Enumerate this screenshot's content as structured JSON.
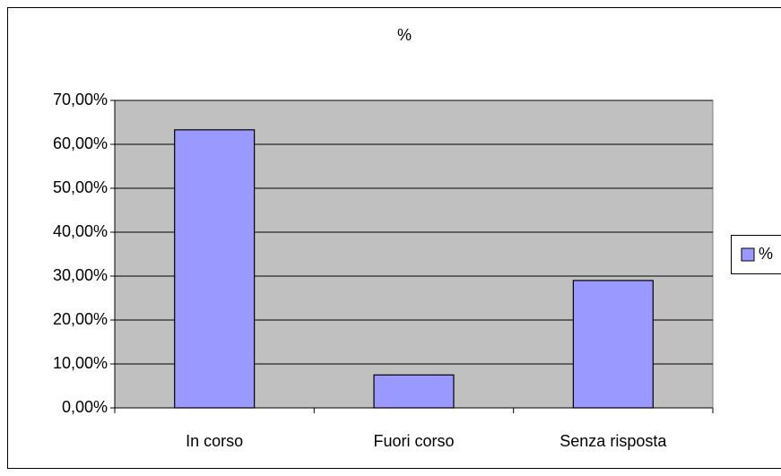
{
  "chart_data": {
    "type": "bar",
    "title": "%",
    "categories": [
      "In corso",
      "Fuori corso",
      "Senza risposta"
    ],
    "series": [
      {
        "name": "%",
        "color": "#9999ff",
        "values": [
          63.3,
          7.5,
          29.0
        ]
      }
    ],
    "ylim": [
      0,
      70
    ],
    "yticks": [
      {
        "value": 0,
        "label": "0,00%"
      },
      {
        "value": 10,
        "label": "10,00%"
      },
      {
        "value": 20,
        "label": "20,00%"
      },
      {
        "value": 30,
        "label": "30,00%"
      },
      {
        "value": 40,
        "label": "40,00%"
      },
      {
        "value": 50,
        "label": "50,00%"
      },
      {
        "value": 60,
        "label": "60,00%"
      },
      {
        "value": 70,
        "label": "70,00%"
      }
    ],
    "grid": true,
    "legend": "right"
  }
}
